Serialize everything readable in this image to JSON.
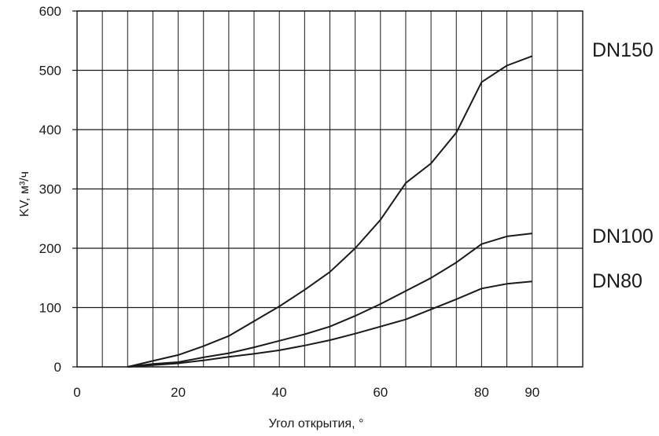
{
  "chart_data": {
    "type": "line",
    "xlabel": "Угол открытия, °",
    "ylabel": "KV, м³/ч",
    "xlim": [
      0,
      100
    ],
    "ylim": [
      0,
      600
    ],
    "x_ticks": [
      0,
      20,
      40,
      60,
      80,
      90
    ],
    "y_ticks": [
      0,
      100,
      200,
      300,
      400,
      500,
      600
    ],
    "x_minor_step": 5,
    "grid": true,
    "legend": "right (series names printed beside line ends)",
    "series": [
      {
        "name": "DN150",
        "x": [
          10,
          15,
          20,
          25,
          30,
          35,
          40,
          45,
          50,
          55,
          60,
          65,
          70,
          75,
          80,
          85,
          90
        ],
        "y": [
          0,
          10,
          20,
          35,
          52,
          77,
          102,
          130,
          160,
          200,
          248,
          310,
          343,
          395,
          480,
          508,
          524
        ]
      },
      {
        "name": "DN100",
        "x": [
          10,
          15,
          20,
          25,
          30,
          35,
          40,
          45,
          50,
          55,
          60,
          65,
          70,
          75,
          80,
          85,
          90
        ],
        "y": [
          0,
          5,
          8,
          16,
          23,
          33,
          44,
          55,
          68,
          86,
          106,
          128,
          150,
          176,
          207,
          220,
          225
        ]
      },
      {
        "name": "DN80",
        "x": [
          10,
          15,
          20,
          25,
          30,
          35,
          40,
          45,
          50,
          55,
          60,
          65,
          70,
          75,
          80,
          85,
          90
        ],
        "y": [
          0,
          3,
          6,
          11,
          17,
          22,
          28,
          36,
          45,
          56,
          68,
          80,
          97,
          114,
          132,
          140,
          144
        ]
      }
    ]
  }
}
